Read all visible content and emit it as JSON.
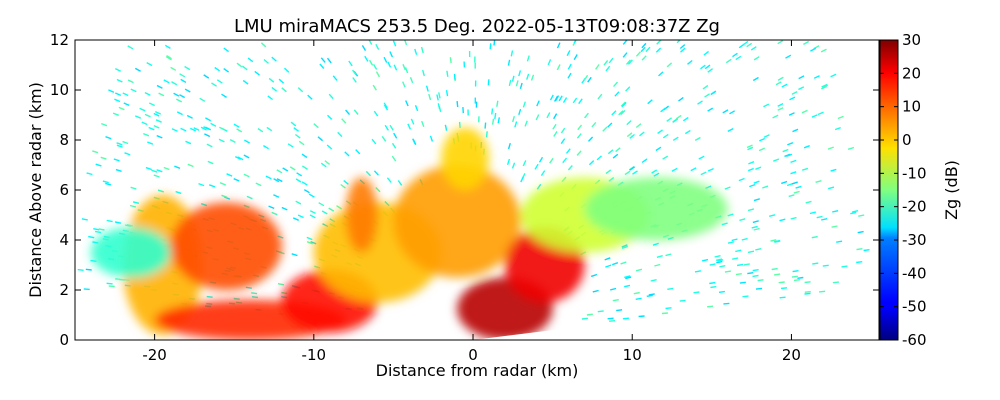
{
  "chart_data": {
    "type": "heatmap",
    "title": "LMU miraMACS 253.5 Deg. 2022-05-13T09:08:37Z  Zg",
    "xlabel": "Distance from radar (km)",
    "ylabel": "Distance Above radar  (km)",
    "xlim": [
      -25,
      25.5
    ],
    "ylim": [
      0,
      12
    ],
    "xticks": [
      -20,
      -10,
      0,
      10,
      20
    ],
    "yticks": [
      0,
      2,
      4,
      6,
      8,
      10,
      12
    ],
    "grid": false,
    "colorbar": {
      "label": "Zg (dB)",
      "range": [
        -60,
        30
      ],
      "ticks": [
        30,
        20,
        10,
        0,
        -10,
        -20,
        -30,
        -40,
        -50,
        -60
      ],
      "colormap": "jet"
    },
    "scan": {
      "radar_x_km": 0,
      "elevation_min_deg": 4.5,
      "elevation_max_deg": 175.5,
      "max_range_km": 25
    },
    "echo_regions": [
      {
        "x": [
          -22,
          -17
        ],
        "y": [
          0.2,
          5.8
        ],
        "zg": 3
      },
      {
        "x": [
          -19,
          -12
        ],
        "y": [
          2.0,
          5.5
        ],
        "zg": 12
      },
      {
        "x": [
          -20,
          -8
        ],
        "y": [
          0.0,
          1.6
        ],
        "zg": 15
      },
      {
        "x": [
          -12,
          -6
        ],
        "y": [
          0.3,
          2.8
        ],
        "zg": 18
      },
      {
        "x": [
          -10,
          -2
        ],
        "y": [
          1.5,
          5.5
        ],
        "zg": 2
      },
      {
        "x": [
          -8,
          -6
        ],
        "y": [
          3.5,
          6.5
        ],
        "zg": 8
      },
      {
        "x": [
          -5,
          3
        ],
        "y": [
          2.5,
          7.0
        ],
        "zg": 5
      },
      {
        "x": [
          -2,
          1
        ],
        "y": [
          6.0,
          8.5
        ],
        "zg": 0
      },
      {
        "x": [
          -1,
          5
        ],
        "y": [
          0.0,
          2.5
        ],
        "zg": 25
      },
      {
        "x": [
          2,
          7
        ],
        "y": [
          1.5,
          4.5
        ],
        "zg": 20
      },
      {
        "x": [
          3,
          11
        ],
        "y": [
          3.5,
          6.5
        ],
        "zg": -8
      },
      {
        "x": [
          7,
          16
        ],
        "y": [
          4.0,
          6.5
        ],
        "zg": -15
      },
      {
        "x": [
          -24,
          -19
        ],
        "y": [
          2.5,
          4.5
        ],
        "zg": -22
      }
    ]
  }
}
